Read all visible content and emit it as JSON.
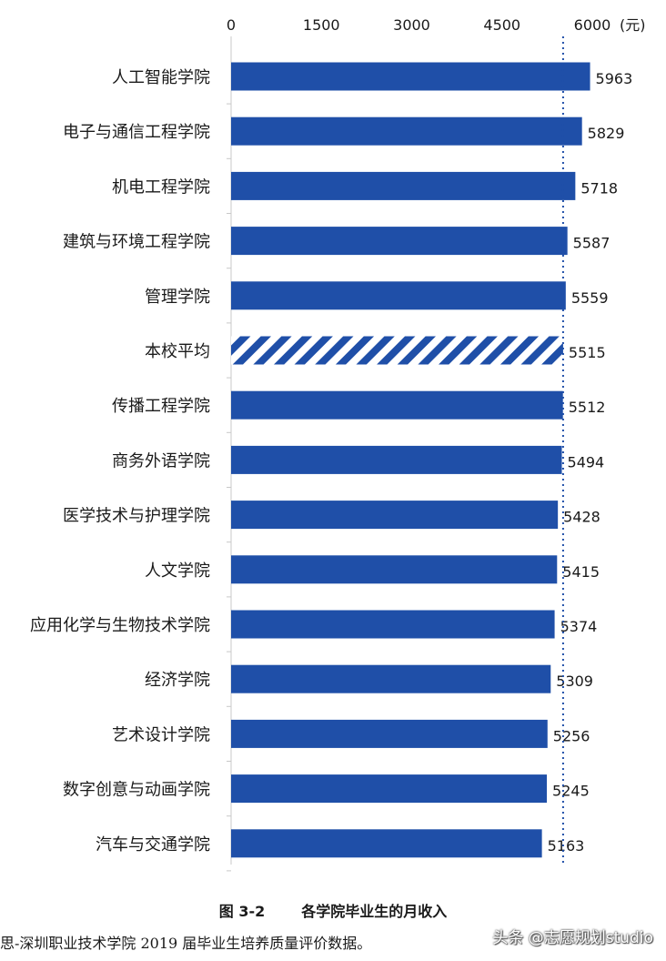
{
  "chart_data": {
    "type": "bar",
    "orientation": "horizontal",
    "unit_label": "(元)",
    "xlim": [
      0,
      6000
    ],
    "x_ticks": [
      0,
      1500,
      3000,
      4500,
      6000
    ],
    "x_tick_labels": [
      "0",
      "1500",
      "3000",
      "4500",
      "6000"
    ],
    "axis_position": "top",
    "reference_line": 5515,
    "categories": [
      "人工智能学院",
      "电子与通信工程学院",
      "机电工程学院",
      "建筑与环境工程学院",
      "管理学院",
      "本校平均",
      "传播工程学院",
      "商务外语学院",
      "医学技术与护理学院",
      "人文学院",
      "应用化学与生物技术学院",
      "经济学院",
      "艺术设计学院",
      "数字创意与动画学院",
      "汽车与交通学院"
    ],
    "values": [
      5963,
      5829,
      5718,
      5587,
      5559,
      5515,
      5512,
      5494,
      5428,
      5415,
      5374,
      5309,
      5256,
      5245,
      5163
    ],
    "highlight_category": "本校平均",
    "bar_color": "#1f4fa8",
    "highlight_pattern": "diagonal-hatch",
    "grid": false
  },
  "caption": {
    "figure_number": "图 3-2",
    "title": "各学院毕业生的月收入"
  },
  "source_note": "思-深圳职业技术学院 2019 届毕业生培养质量评价数据。",
  "watermark": "头条 @志愿规划studio"
}
